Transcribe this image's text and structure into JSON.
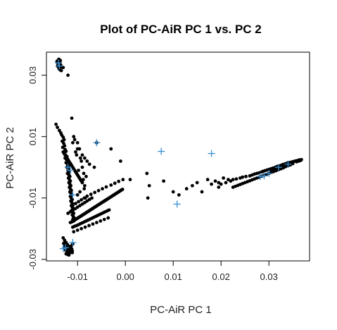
{
  "chart_data": {
    "type": "scatter",
    "title": "Plot of PC-AiR PC 1 vs. PC 2",
    "xlabel": "PC-AiR PC 1",
    "ylabel": "PC-AiR PC 2",
    "xlim": [
      -0.0165,
      0.0385
    ],
    "ylim": [
      -0.0305,
      0.0375
    ],
    "x_ticks": [
      {
        "value": -0.01,
        "label": "-0.01"
      },
      {
        "value": 0.0,
        "label": "0.00"
      },
      {
        "value": 0.01,
        "label": "0.01"
      },
      {
        "value": 0.02,
        "label": "0.02"
      },
      {
        "value": 0.03,
        "label": "0.03"
      }
    ],
    "y_ticks": [
      {
        "value": -0.03,
        "label": "-0.03"
      },
      {
        "value": -0.01,
        "label": "-0.01"
      },
      {
        "value": 0.01,
        "label": "0.01"
      },
      {
        "value": 0.03,
        "label": "0.03"
      }
    ],
    "grid": false,
    "colors": {
      "dots": "#000000",
      "crosses": "#3a8fd1"
    },
    "series": [
      {
        "marker": "dot",
        "x": [
          -0.0143,
          -0.014,
          -0.0138,
          -0.0136,
          -0.0141,
          -0.0137,
          -0.0139,
          -0.0135,
          -0.0142,
          -0.0138,
          -0.0136,
          -0.0139,
          -0.0137,
          -0.0134,
          -0.014,
          -0.0138,
          -0.0136,
          -0.0137,
          -0.0139,
          -0.0136,
          -0.013,
          -0.012,
          -0.0145,
          -0.0142,
          -0.0138,
          -0.0135,
          -0.0133,
          -0.013,
          -0.0128,
          -0.0132,
          -0.0129,
          -0.0127,
          -0.0131,
          -0.0126,
          -0.0124,
          -0.0128,
          -0.0125,
          -0.0122,
          -0.0126,
          -0.0123,
          -0.012,
          -0.0124,
          -0.0121,
          -0.0119,
          -0.0122,
          -0.0118,
          -0.012,
          -0.0117,
          -0.0121,
          -0.0118,
          -0.0116,
          -0.0119,
          -0.0117,
          -0.0115,
          -0.0118,
          -0.0116,
          -0.0114,
          -0.0117,
          -0.0115,
          -0.0113,
          -0.0116,
          -0.0114,
          -0.0112,
          -0.0115,
          -0.0113,
          -0.0111,
          -0.0114,
          -0.0112,
          -0.011,
          -0.0113,
          -0.0111,
          -0.0109,
          -0.0112,
          -0.011,
          -0.0108,
          -0.0111,
          -0.0109,
          -0.0107,
          -0.011,
          -0.0108,
          -0.0112,
          -0.0106,
          -0.0104,
          -0.0108,
          -0.0102,
          -0.01,
          -0.0096,
          -0.0092,
          -0.009,
          -0.0087,
          -0.0094,
          -0.0088,
          -0.0098,
          -0.0085,
          -0.0082,
          -0.0095,
          -0.009,
          -0.0086,
          -0.01,
          -0.0084,
          -0.0115,
          -0.0112,
          -0.011,
          -0.0108,
          -0.0106,
          -0.0104,
          -0.0102,
          -0.01,
          -0.0098,
          -0.0096,
          -0.0094,
          -0.0092,
          -0.009,
          -0.0088,
          -0.0086,
          -0.0084,
          -0.0082,
          -0.008,
          -0.0078,
          -0.0076,
          -0.0074,
          -0.0072,
          -0.007,
          -0.0068,
          -0.0066,
          -0.0064,
          -0.0062,
          -0.006,
          -0.0058,
          -0.0056,
          -0.0054,
          -0.0052,
          -0.005,
          -0.0048,
          -0.0046,
          -0.0044,
          -0.0042,
          -0.004,
          -0.0038,
          -0.0036,
          -0.0034,
          -0.0032,
          -0.003,
          -0.0028,
          -0.0026,
          -0.0024,
          -0.0022,
          -0.002,
          -0.0018,
          -0.0016,
          -0.0014,
          -0.0012,
          -0.001,
          -0.0008,
          -0.0006,
          -0.011,
          -0.0106,
          -0.0102,
          -0.0098,
          -0.0094,
          -0.009,
          -0.0086,
          -0.0082,
          -0.0078,
          -0.0074,
          -0.007,
          -0.0066,
          -0.0062,
          -0.0058,
          -0.0054,
          -0.005,
          -0.0046,
          -0.0042,
          -0.0038,
          -0.0034,
          -0.0108,
          -0.01,
          -0.0092,
          -0.0084,
          -0.0076,
          -0.0068,
          -0.006,
          -0.0052,
          -0.0044,
          -0.0036,
          -0.011,
          -0.0104,
          -0.0098,
          -0.0092,
          -0.0086,
          -0.008,
          -0.0072,
          -0.0064,
          -0.0056,
          -0.0048,
          -0.004,
          -0.003,
          -0.0022,
          -0.0014,
          -0.0005,
          -0.013,
          -0.0127,
          -0.0124,
          -0.0121,
          -0.0118,
          -0.0115,
          -0.0112,
          -0.0125,
          -0.0122,
          -0.0119,
          -0.0116,
          -0.0113,
          -0.011,
          -0.0128,
          -0.0126,
          -0.0123,
          -0.012,
          -0.0117,
          -0.0114,
          -0.0111,
          -0.0129,
          -0.0126,
          -0.0123,
          -0.012,
          -0.0117,
          -0.0114,
          -0.0111,
          -0.0124,
          -0.0121,
          -0.0118,
          -0.013,
          -0.0128,
          -0.0126,
          -0.0124,
          -0.0122,
          -0.012,
          -0.0118,
          -0.0116,
          -0.0114,
          -0.0112,
          -0.011,
          -0.0108,
          -0.0106,
          -0.0104,
          -0.0102,
          -0.01,
          -0.0098,
          -0.0096,
          -0.0094,
          -0.0092,
          -0.012,
          -0.0115,
          -0.011,
          -0.0105,
          -0.01,
          -0.0095,
          -0.009,
          -0.0085,
          -0.008,
          -0.0075,
          -0.007,
          -0.011,
          -0.01,
          -0.009,
          -0.008,
          -0.0085,
          -0.0075,
          -0.0065,
          -0.006,
          -0.003,
          -0.001,
          0.001,
          0.0045,
          0.005,
          0.0047,
          0.008,
          0.01,
          0.0112,
          0.0128,
          0.014,
          0.015,
          0.016,
          0.0172,
          0.018,
          0.0188,
          0.0195,
          0.0205,
          0.0215,
          0.0195,
          0.02,
          0.021,
          0.022,
          0.0225,
          0.0232,
          0.024,
          0.0245,
          0.0252,
          0.026,
          0.0265,
          0.027,
          0.0275,
          0.028,
          0.0285,
          0.0288,
          0.0292,
          0.0296,
          0.03,
          0.0304,
          0.0308,
          0.0312,
          0.0315,
          0.0318,
          0.0322,
          0.0325,
          0.0328,
          0.033,
          0.0333,
          0.0336,
          0.0338,
          0.034,
          0.0343,
          0.0346,
          0.0348,
          0.035,
          0.0352,
          0.0355,
          0.0357,
          0.036,
          0.0362,
          0.0364,
          0.0366,
          0.0368,
          0.035,
          0.0345,
          0.034,
          0.0335,
          0.033,
          0.0325,
          0.032,
          0.0315,
          0.031,
          0.0305,
          0.03,
          0.0295,
          0.029,
          0.0285,
          0.028,
          0.0275,
          0.027,
          0.0265,
          0.026,
          0.0255,
          0.025,
          0.0245,
          0.024,
          0.0235,
          0.023,
          0.0225,
          0.0358,
          0.0362,
          0.0366,
          0.034,
          0.0334,
          0.0328,
          0.0322,
          0.0316,
          0.031,
          0.0304
        ],
        "y": [
          0.0345,
          0.035,
          0.0343,
          0.0348,
          0.0338,
          0.034,
          0.0335,
          0.0333,
          0.033,
          0.0328,
          0.0325,
          0.0322,
          0.0318,
          0.0315,
          0.0342,
          0.0336,
          0.033,
          0.0326,
          0.0352,
          0.0347,
          0.0325,
          0.03,
          0.014,
          0.013,
          0.012,
          0.0112,
          0.0105,
          0.0098,
          0.009,
          0.0085,
          0.0078,
          0.007,
          0.0065,
          0.0058,
          0.0052,
          0.0046,
          0.004,
          0.0035,
          0.003,
          0.0025,
          0.002,
          0.0015,
          0.001,
          0.0005,
          0.0,
          -0.0005,
          -0.001,
          -0.0015,
          -0.002,
          -0.0025,
          -0.003,
          -0.0035,
          -0.004,
          -0.0045,
          -0.005,
          -0.0055,
          -0.006,
          -0.0065,
          -0.007,
          -0.0075,
          -0.008,
          -0.0085,
          -0.009,
          -0.0095,
          -0.01,
          -0.0105,
          -0.011,
          -0.0115,
          -0.012,
          -0.0125,
          -0.013,
          -0.0135,
          -0.014,
          -0.0145,
          -0.015,
          -0.0155,
          -0.016,
          -0.0165,
          -0.017,
          -0.0175,
          0.016,
          0.009,
          0.005,
          0.01,
          0.004,
          0.008,
          0.006,
          0.002,
          0.0,
          -0.002,
          0.003,
          -0.004,
          -0.001,
          -0.006,
          -0.003,
          -0.008,
          -0.005,
          -0.007,
          -0.009,
          -0.01,
          -0.018,
          -0.0178,
          -0.0176,
          -0.0174,
          -0.0172,
          -0.017,
          -0.0168,
          -0.0166,
          -0.0164,
          -0.0162,
          -0.016,
          -0.0158,
          -0.0156,
          -0.0154,
          -0.0152,
          -0.015,
          -0.0148,
          -0.0146,
          -0.0144,
          -0.0142,
          -0.014,
          -0.0138,
          -0.0136,
          -0.0134,
          -0.0132,
          -0.013,
          -0.0128,
          -0.0126,
          -0.0124,
          -0.0122,
          -0.012,
          -0.0118,
          -0.0116,
          -0.0114,
          -0.0112,
          -0.011,
          -0.0108,
          -0.0106,
          -0.0104,
          -0.0102,
          -0.01,
          -0.0098,
          -0.0096,
          -0.0094,
          -0.0092,
          -0.009,
          -0.0088,
          -0.0086,
          -0.0084,
          -0.0082,
          -0.008,
          -0.0078,
          -0.0076,
          -0.0074,
          -0.0072,
          -0.0195,
          -0.0192,
          -0.019,
          -0.0187,
          -0.0184,
          -0.0181,
          -0.0178,
          -0.0175,
          -0.0172,
          -0.0169,
          -0.0166,
          -0.0163,
          -0.016,
          -0.0157,
          -0.0154,
          -0.0151,
          -0.0148,
          -0.0145,
          -0.0142,
          -0.0139,
          -0.021,
          -0.0205,
          -0.02,
          -0.0195,
          -0.019,
          -0.0185,
          -0.018,
          -0.0175,
          -0.017,
          -0.0165,
          -0.0125,
          -0.0118,
          -0.0112,
          -0.0106,
          -0.01,
          -0.0094,
          -0.0088,
          -0.0082,
          -0.0076,
          -0.007,
          -0.0064,
          -0.0058,
          -0.0052,
          -0.0046,
          -0.004,
          -0.023,
          -0.0238,
          -0.0245,
          -0.0252,
          -0.0258,
          -0.0262,
          -0.0266,
          -0.027,
          -0.0274,
          -0.0268,
          -0.0262,
          -0.0256,
          -0.025,
          -0.026,
          -0.0266,
          -0.0272,
          -0.0276,
          -0.028,
          -0.0276,
          -0.0272,
          -0.0248,
          -0.0254,
          -0.026,
          -0.0265,
          -0.027,
          -0.0275,
          -0.0278,
          -0.0282,
          -0.0284,
          -0.0286,
          0.005,
          0.0045,
          0.004,
          0.0035,
          0.003,
          0.0025,
          0.002,
          0.0015,
          0.001,
          0.0005,
          0.0,
          -0.0005,
          -0.001,
          -0.0015,
          -0.002,
          -0.0025,
          -0.003,
          -0.0035,
          -0.004,
          -0.0045,
          -0.015,
          -0.0145,
          -0.014,
          -0.0135,
          -0.013,
          -0.0125,
          -0.012,
          -0.0115,
          -0.011,
          -0.0105,
          -0.01,
          0.008,
          0.006,
          0.004,
          0.002,
          0.003,
          0.001,
          0.0,
          0.008,
          0.006,
          0.002,
          -0.004,
          -0.002,
          -0.006,
          -0.01,
          -0.0045,
          -0.008,
          -0.009,
          -0.007,
          -0.006,
          -0.005,
          -0.008,
          -0.004,
          -0.0055,
          -0.0045,
          -0.005,
          -0.0035,
          -0.004,
          -0.0065,
          -0.0055,
          -0.005,
          -0.0045,
          -0.004,
          -0.0038,
          -0.0035,
          -0.0032,
          -0.003,
          -0.0028,
          -0.0025,
          -0.0022,
          -0.002,
          -0.0018,
          -0.0015,
          -0.0013,
          -0.0011,
          -0.0009,
          -0.0007,
          -0.0005,
          -0.0003,
          -0.0001,
          0.0001,
          0.0003,
          0.0004,
          0.0006,
          0.0008,
          0.0009,
          0.001,
          0.0012,
          0.0013,
          0.0014,
          0.0015,
          0.0016,
          0.0017,
          0.0018,
          0.0019,
          0.002,
          0.0021,
          0.0022,
          0.0023,
          0.0024,
          0.0024,
          0.0025,
          0.0012,
          0.0008,
          0.0005,
          0.0002,
          -0.0002,
          -0.0005,
          -0.0008,
          -0.0011,
          -0.0014,
          -0.0017,
          -0.002,
          -0.0023,
          -0.0026,
          -0.0029,
          -0.0032,
          -0.0035,
          -0.0038,
          -0.0041,
          -0.0044,
          -0.0047,
          -0.005,
          -0.0053,
          -0.0056,
          -0.0059,
          -0.0062,
          -0.0065,
          0.0018,
          0.002,
          0.0022,
          0.0015,
          0.0011,
          0.0007,
          0.0003,
          -0.0001,
          -0.0005,
          -0.0009
        ]
      },
      {
        "marker": "cross",
        "x": [
          -0.014,
          -0.0138,
          -0.012,
          -0.0115,
          -0.011,
          -0.006,
          0.0075,
          0.018,
          0.0108,
          -0.013,
          -0.0125,
          -0.011,
          0.0282,
          0.03,
          0.032,
          0.034,
          0.029
        ],
        "y": [
          0.034,
          0.033,
          0.0,
          -0.001,
          -0.009,
          0.008,
          0.0052,
          0.0045,
          -0.012,
          -0.0265,
          -0.0262,
          -0.0245,
          -0.003,
          -0.002,
          0.0,
          0.001,
          -0.0028
        ]
      }
    ]
  }
}
